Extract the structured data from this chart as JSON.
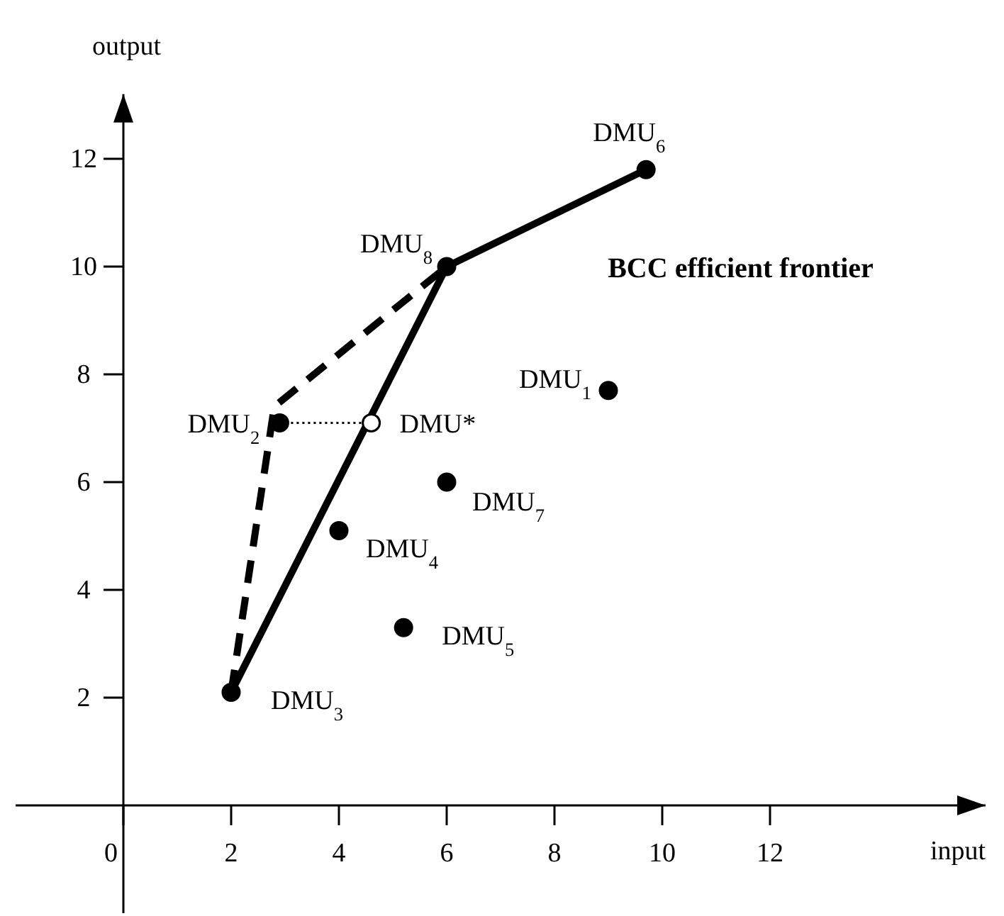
{
  "chart_data": {
    "type": "scatter",
    "xlabel": "input",
    "ylabel": "output",
    "xlim": [
      0,
      16
    ],
    "ylim": [
      0,
      13.2
    ],
    "xticks": [
      0,
      2,
      4,
      6,
      8,
      10,
      12
    ],
    "yticks": [
      2,
      4,
      6,
      8,
      10,
      12
    ],
    "grid": false,
    "legend": false,
    "series": [
      {
        "type": "line",
        "name": "BCC efficient frontier",
        "color": "#000000",
        "x": [
          2,
          6,
          9.7
        ],
        "values": [
          2.1,
          10,
          11.8
        ],
        "line_style": "solid",
        "marker": "none"
      },
      {
        "type": "line",
        "color": "#000000",
        "x": [
          2,
          2.8,
          6
        ],
        "values": [
          2.1,
          7.4,
          10
        ],
        "line_style": "dashed",
        "marker": "none"
      },
      {
        "type": "line",
        "color": "#000000",
        "x": [
          2.9,
          4.6
        ],
        "values": [
          7.1,
          7.1
        ],
        "line_style": "dotted",
        "marker": "none"
      },
      {
        "color": "#000000",
        "x": [
          9,
          2.9,
          2,
          4,
          5.2,
          9.7,
          6,
          6
        ],
        "values": [
          7.7,
          7.1,
          2.1,
          5.1,
          3.3,
          11.8,
          6,
          10
        ],
        "marker": "circle"
      },
      {
        "color": "#ffffff",
        "x": [
          4.6
        ],
        "values": [
          7.1
        ],
        "marker": "circle"
      }
    ],
    "annotations": [
      {
        "text": "DMU$_{1}$",
        "x": 9,
        "y": 7.7
      },
      {
        "text": "DMU$_{2}$",
        "x": 2.9,
        "y": 7.1
      },
      {
        "text": "DMU$_{3}$",
        "x": 2,
        "y": 2.1
      },
      {
        "text": "DMU$_{4}$",
        "x": 4,
        "y": 5.1
      },
      {
        "text": "DMU$_{5}$",
        "x": 5.2,
        "y": 3.3
      },
      {
        "text": "DMU$_{6}$",
        "x": 9.7,
        "y": 11.8
      },
      {
        "text": "DMU$_{7}$",
        "x": 6,
        "y": 6
      },
      {
        "text": "DMU$_{8}$",
        "x": 6,
        "y": 10
      },
      {
        "text": "DMU*",
        "x": 4.6,
        "y": 7.1
      }
    ]
  }
}
